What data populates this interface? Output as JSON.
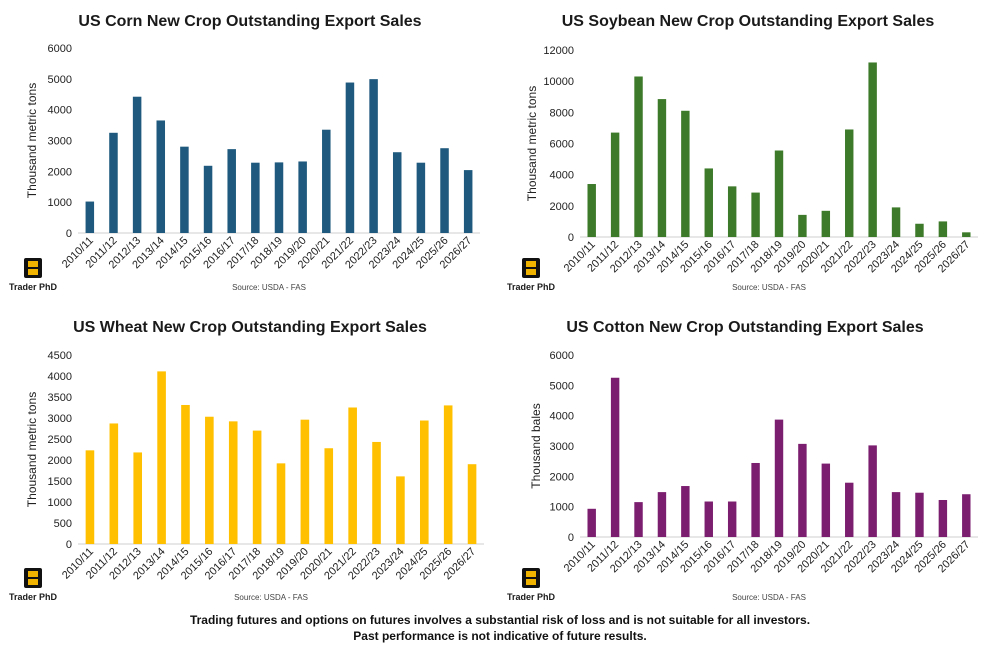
{
  "chart_data": [
    {
      "type": "bar",
      "title": "US Corn New Crop Outstanding Export Sales",
      "ylabel": "Thousand metric tons",
      "xlabel": "",
      "categories": [
        "2010/11",
        "2011/12",
        "2012/13",
        "2013/14",
        "2014/15",
        "2015/16",
        "2016/17",
        "2017/18",
        "2018/19",
        "2019/20",
        "2020/21",
        "2021/22",
        "2022/23",
        "2023/24",
        "2024/25",
        "2025/26",
        "2026/27"
      ],
      "values": [
        1020,
        3250,
        4420,
        3650,
        2800,
        2180,
        2720,
        2280,
        2290,
        2320,
        3350,
        4880,
        4990,
        2620,
        2280,
        2750,
        2040
      ],
      "ylim": [
        0,
        6000
      ],
      "yticks": [
        0,
        1000,
        2000,
        3000,
        4000,
        5000,
        6000
      ],
      "color": "#1f5a7e",
      "source": "Source: USDA - FAS",
      "logo": "Trader PhD"
    },
    {
      "type": "bar",
      "title": "US Soybean New Crop Outstanding Export Sales",
      "ylabel": "Thousand metric tons",
      "xlabel": "",
      "categories": [
        "2010/11",
        "2011/12",
        "2012/13",
        "2013/14",
        "2014/15",
        "2015/16",
        "2016/17",
        "2017/18",
        "2018/19",
        "2019/20",
        "2020/21",
        "2021/22",
        "2022/23",
        "2023/24",
        "2024/25",
        "2025/26",
        "2026/27"
      ],
      "values": [
        3400,
        6700,
        10300,
        8850,
        8100,
        4400,
        3250,
        2850,
        5550,
        1420,
        1680,
        6900,
        11200,
        1900,
        850,
        1000,
        300
      ],
      "ylim": [
        0,
        12000
      ],
      "yticks": [
        0,
        2000,
        4000,
        6000,
        8000,
        10000,
        12000
      ],
      "color": "#3d7a2a",
      "source": "Source: USDA - FAS",
      "logo": "Trader PhD"
    },
    {
      "type": "bar",
      "title": "US Wheat New Crop Outstanding Export Sales",
      "ylabel": "Thousand metric tons",
      "xlabel": "",
      "categories": [
        "2010/11",
        "2011/12",
        "2012/13",
        "2013/14",
        "2014/15",
        "2015/16",
        "2016/17",
        "2017/18",
        "2018/19",
        "2019/20",
        "2020/21",
        "2021/22",
        "2022/23",
        "2023/24",
        "2024/25",
        "2025/26",
        "2026/27"
      ],
      "values": [
        2230,
        2870,
        2180,
        4110,
        3310,
        3030,
        2920,
        2700,
        1920,
        2960,
        2280,
        3250,
        2430,
        1610,
        2940,
        3300,
        1900
      ],
      "ylim": [
        0,
        4500
      ],
      "yticks": [
        0,
        500,
        1000,
        1500,
        2000,
        2500,
        3000,
        3500,
        4000,
        4500
      ],
      "color": "#ffc000",
      "source": "Source: USDA - FAS",
      "logo": "Trader PhD"
    },
    {
      "type": "bar",
      "title": "US Cotton New Crop Outstanding Export Sales",
      "ylabel": "Thousand bales",
      "xlabel": "",
      "categories": [
        "2010/11",
        "2011/12",
        "2012/13",
        "2013/14",
        "2014/15",
        "2015/16",
        "2016/17",
        "2017/18",
        "2018/19",
        "2019/20",
        "2020/21",
        "2021/22",
        "2022/23",
        "2023/24",
        "2024/25",
        "2025/26",
        "2026/27"
      ],
      "values": [
        930,
        5250,
        1150,
        1480,
        1680,
        1170,
        1170,
        2440,
        3870,
        3070,
        2420,
        1790,
        3020,
        1480,
        1460,
        1220,
        1410
      ],
      "ylim": [
        0,
        6000
      ],
      "yticks": [
        0,
        1000,
        2000,
        3000,
        4000,
        5000,
        6000
      ],
      "color": "#7b1e6f",
      "source": "Source: USDA - FAS",
      "logo": "Trader PhD"
    }
  ],
  "disclaimer": {
    "line1": "Trading futures and options on futures involves a substantial risk of loss and is not suitable for all investors.",
    "line2": "Past performance is not indicative of future results."
  }
}
